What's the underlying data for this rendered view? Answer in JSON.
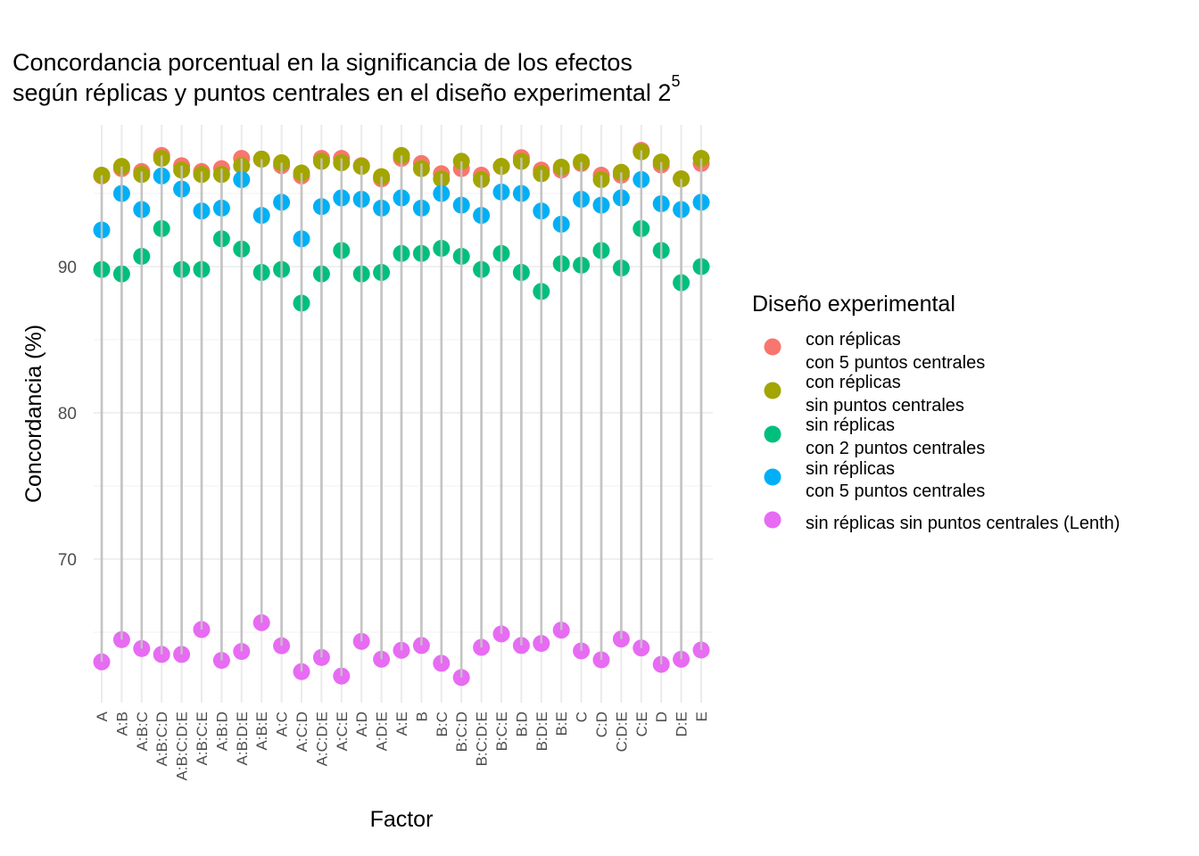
{
  "chart_data": {
    "type": "scatter",
    "title_lines": [
      "Concordancia porcentual en la significancia de los efectos",
      "según réplicas y puntos centrales en el diseño experimental 2"
    ],
    "title_superscript": "5",
    "xlabel": "Factor",
    "ylabel": "Concordancia (%)",
    "ylim": [
      60.5,
      99.2
    ],
    "yticks": [
      70,
      80,
      90
    ],
    "ytick_labels": [
      "70",
      "80",
      "90"
    ],
    "grid": true,
    "legend_title": "Diseño experimental",
    "legend_position": "right",
    "categories": [
      "A",
      "A:B",
      "A:B:C",
      "A:B:C:D",
      "A:B:C:D:E",
      "A:B:C:E",
      "A:B:D",
      "A:B:D:E",
      "A:B:E",
      "A:C",
      "A:C:D",
      "A:C:D:E",
      "A:C:E",
      "A:D",
      "A:D:E",
      "A:E",
      "B",
      "B:C",
      "B:C:D",
      "B:C:D:E",
      "B:C:E",
      "B:D",
      "B:D:E",
      "B:E",
      "C",
      "C:D",
      "C:D:E",
      "C:E",
      "D",
      "D:E",
      "E"
    ],
    "series": [
      {
        "name": "con réplicas\ncon 5 puntos centrales",
        "label_lines": [
          "con réplicas",
          "con 5 puntos centrales"
        ],
        "color": "#F8766D",
        "values": [
          96.2,
          96.7,
          96.5,
          97.6,
          96.9,
          96.5,
          96.7,
          97.4,
          97.35,
          96.9,
          96.2,
          97.4,
          97.4,
          96.9,
          96.0,
          97.4,
          97.05,
          96.35,
          96.7,
          96.25,
          96.85,
          97.45,
          96.6,
          96.6,
          97.05,
          96.25,
          96.25,
          97.95,
          96.95,
          96.0,
          97.05
        ]
      },
      {
        "name": "con réplicas\nsin puntos centrales",
        "label_lines": [
          "con réplicas",
          "sin puntos centrales"
        ],
        "color": "#A3A500",
        "values": [
          96.25,
          96.85,
          96.3,
          97.4,
          96.6,
          96.3,
          96.3,
          96.9,
          97.35,
          97.1,
          96.4,
          97.2,
          97.1,
          96.85,
          96.15,
          97.6,
          96.7,
          96.0,
          97.2,
          95.95,
          96.85,
          97.2,
          96.35,
          96.8,
          97.15,
          95.95,
          96.45,
          97.85,
          97.15,
          96.0,
          97.4
        ]
      },
      {
        "name": "sin réplicas\ncon 2 puntos centrales",
        "label_lines": [
          "sin réplicas",
          "con 2 puntos centrales"
        ],
        "color": "#00BF7D",
        "values": [
          89.8,
          89.5,
          90.7,
          92.6,
          89.8,
          89.8,
          91.9,
          91.2,
          89.6,
          89.8,
          87.5,
          89.5,
          91.1,
          89.5,
          89.6,
          90.9,
          90.9,
          91.25,
          90.7,
          89.8,
          90.9,
          89.6,
          88.3,
          90.2,
          90.1,
          91.1,
          89.9,
          92.6,
          91.1,
          88.9,
          90.0
        ]
      },
      {
        "name": "sin réplicas\ncon 5 puntos centrales",
        "label_lines": [
          "sin réplicas",
          "con 5 puntos centrales"
        ],
        "color": "#00B0F6",
        "values": [
          92.5,
          95.0,
          93.9,
          96.2,
          95.3,
          93.8,
          94.0,
          95.95,
          93.5,
          94.4,
          91.9,
          94.1,
          94.7,
          94.6,
          94.0,
          94.7,
          94.0,
          95.0,
          94.2,
          93.5,
          95.1,
          95.0,
          93.8,
          92.9,
          94.6,
          94.2,
          94.7,
          95.95,
          94.3,
          93.9,
          94.4
        ]
      },
      {
        "name": "sin réplicas sin puntos centrales (Lenth)",
        "label_lines": [
          "sin réplicas sin puntos centrales (Lenth)"
        ],
        "color": "#E76BF3",
        "values": [
          62.97,
          64.49,
          63.88,
          63.48,
          63.48,
          65.18,
          63.07,
          63.68,
          65.65,
          64.07,
          62.3,
          63.27,
          62.0,
          64.37,
          63.15,
          63.76,
          64.09,
          62.87,
          61.9,
          63.96,
          64.88,
          64.09,
          64.23,
          65.14,
          63.72,
          63.11,
          64.53,
          63.92,
          62.8,
          63.15,
          63.78
        ]
      }
    ]
  }
}
